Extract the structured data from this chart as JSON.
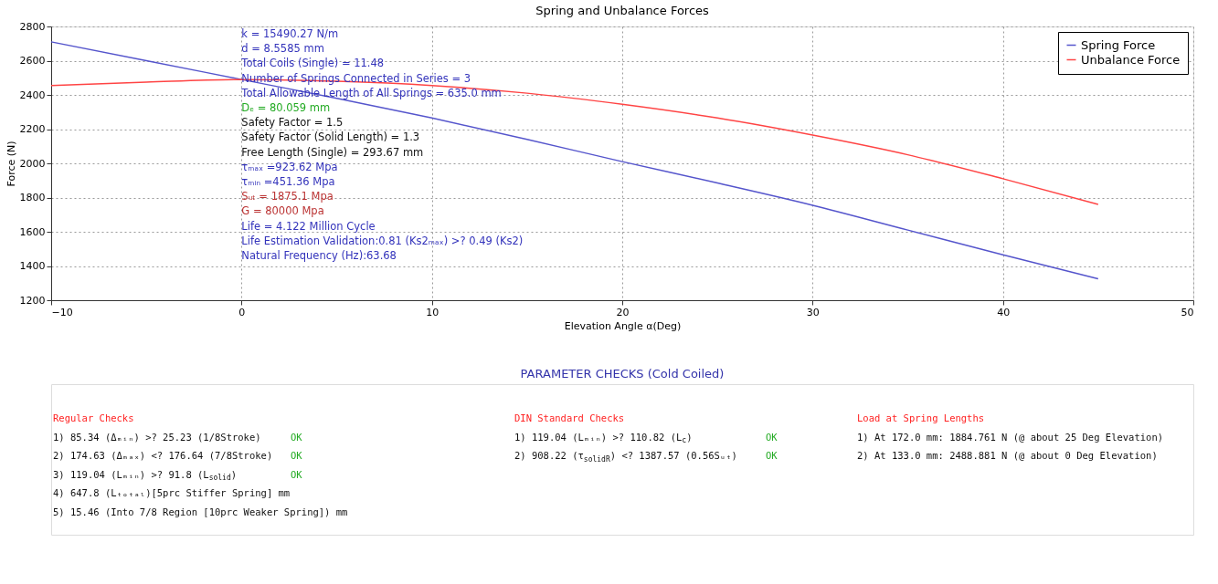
{
  "chart_data": [
    {
      "type": "line",
      "title": "Spring and Unbalance Forces",
      "xlabel": "Elevation Angle α(Deg)",
      "ylabel": "Force (N)",
      "x": [
        -10,
        -5,
        0,
        5,
        10,
        15,
        20,
        25,
        30,
        35,
        40,
        45
      ],
      "series": [
        {
          "name": "Spring Force",
          "color": "#5555cc",
          "values": [
            2710,
            2600,
            2490,
            2380,
            2265,
            2140,
            2010,
            1885,
            1755,
            1610,
            1465,
            1325
          ]
        },
        {
          "name": "Unbalance Force",
          "color": "#ff4444",
          "values": [
            2455,
            2475,
            2490,
            2480,
            2455,
            2410,
            2345,
            2265,
            2165,
            2050,
            1910,
            1760
          ]
        }
      ],
      "xlim": [
        -10,
        50
      ],
      "xticks": [
        -10,
        0,
        10,
        20,
        30,
        40,
        50
      ],
      "ylim": [
        1200,
        2800
      ],
      "yticks": [
        1200,
        1400,
        1600,
        1800,
        2000,
        2200,
        2400,
        2600,
        2800
      ],
      "grid": true,
      "legend": "top right",
      "annotations": [
        "k = 15490.27 N/m",
        "d = 8.5585 mm",
        "Total Coils (Single) = 11.48",
        "Number of Springs Connected in Series = 3",
        "Total Allowable Length of All Springs = 635.0 mm",
        "Dₑ = 80.059 mm",
        "Safety Factor = 1.5",
        "Safety Factor (Solid Length) = 1.3",
        "Free Length (Single) = 293.67 mm",
        "τₘₐₓ =923.62 Mpa",
        "τₘᵢₙ =451.36 Mpa",
        "Sᵤₜ = 1875.1 Mpa",
        "G = 80000 Mpa",
        "Life = 4.122 Million Cycle",
        "Life Estimation Validation:0.81 (Ks2ₘₐₓ) >? 0.49 (Ks2)",
        "Natural Frequency (Hz):63.68"
      ]
    },
    {
      "type": "other",
      "title": "PARAMETER CHECKS (Cold Coiled)",
      "annotations": [
        "Regular Checks",
        "1) 85.34 (Δₘᵢₙ) >? 25.23 (1/8Stroke)",
        "OK",
        "2) 174.63 (Δₘₐₓ) <? 176.64 (7/8Stroke)",
        "OK",
        "3) 119.04 (Lₘᵢₙ) >? 91.8 (L$_{solid}$)",
        "OK",
        "4) 647.8 (Lₜₒₜₐₗ)[5prc Stiffer Spring] mm",
        "5) 15.46  (Into 7/8 Region [10prc Weaker Spring]) mm",
        "DIN Standard Checks",
        "1) 119.04 (Lₘᵢₙ) >? 110.82 (L$_{c}$)",
        "OK",
        "2) 908.22 (τ$_{solidR}$) <? 1387.57 (0.56Sᵤₜ)",
        "OK",
        "Load at Spring Lengths",
        "1) At 172.0 mm: 1884.761 N  (@ about 25 Deg Elevation)",
        "2) At 133.0 mm: 2488.881 N  (@ about 0 Deg Elevation)"
      ]
    }
  ]
}
